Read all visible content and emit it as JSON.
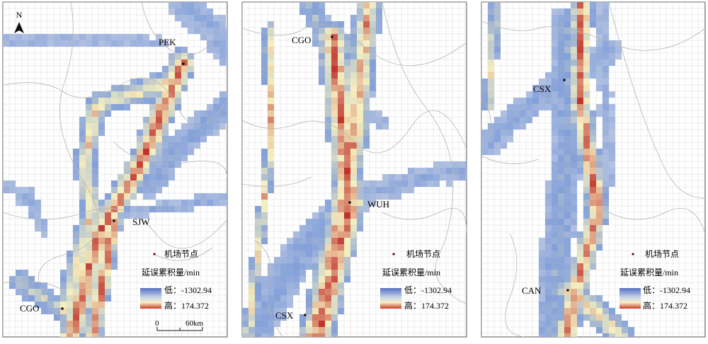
{
  "panels": [
    {
      "id": "left",
      "airports": [
        {
          "code": "PEK"
        },
        {
          "code": "SJW"
        },
        {
          "code": "CGO"
        }
      ],
      "north_label": "N",
      "scalebar": {
        "zero": "0",
        "end": "60km"
      }
    },
    {
      "id": "middle",
      "airports": [
        {
          "code": "CGO"
        },
        {
          "code": "WUH"
        },
        {
          "code": "CSX"
        }
      ]
    },
    {
      "id": "right",
      "airports": [
        {
          "code": "CSX"
        },
        {
          "code": "CAN"
        }
      ]
    }
  ],
  "legend": {
    "airport_node": "机场节点",
    "title": "延误累积量/min",
    "low_label": "低：-1302.94",
    "high_label": "高：174.372"
  },
  "colors": {
    "low": "#5b78c4",
    "mid": "#f6f0c0",
    "high": "#c0342c",
    "grid": "#cfcfcf",
    "boundary": "#b8b8b8",
    "airport_dot": "#7a0000"
  }
}
